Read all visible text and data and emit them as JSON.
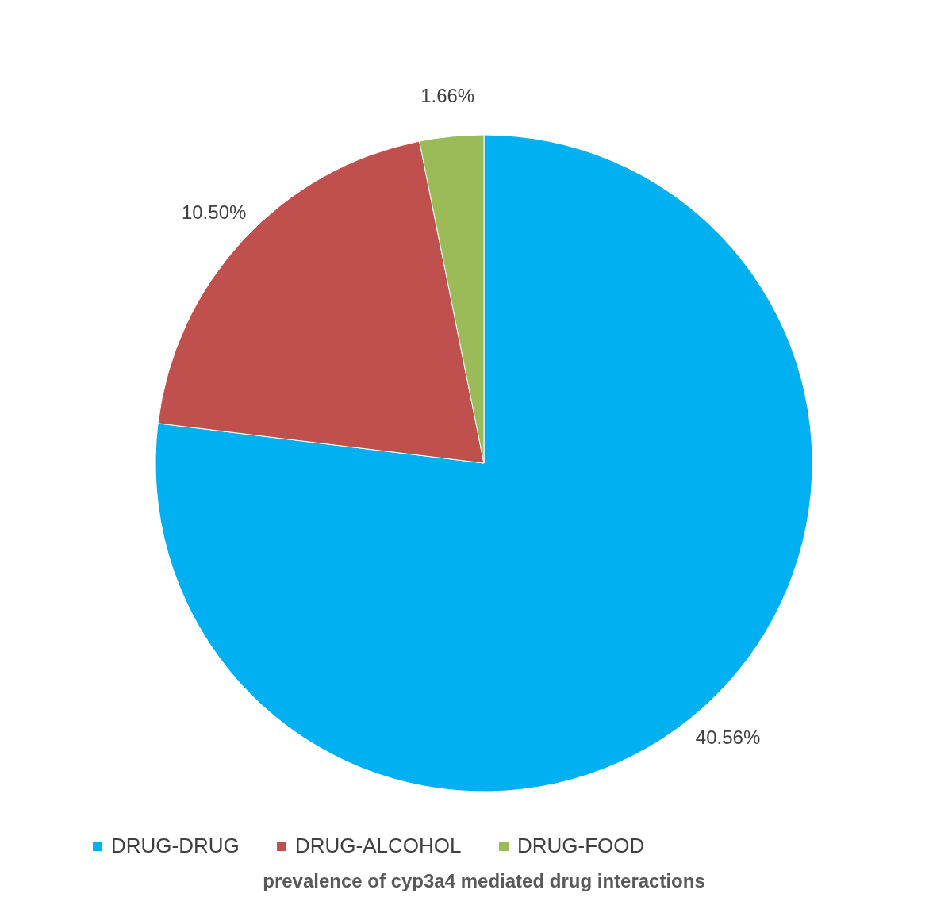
{
  "chart_data": {
    "type": "pie",
    "title": "prevalence of cyp3a4 mediated drug interactions",
    "categories": [
      "DRUG-DRUG",
      "DRUG-ALCOHOL",
      "DRUG-FOOD"
    ],
    "values": [
      40.56,
      10.5,
      1.66
    ],
    "colors": [
      "#00b0f0",
      "#c0504d",
      "#9bbb59"
    ],
    "value_labels": [
      "40.56%",
      "10.50%",
      "1.66%"
    ],
    "legend": "bottom"
  }
}
